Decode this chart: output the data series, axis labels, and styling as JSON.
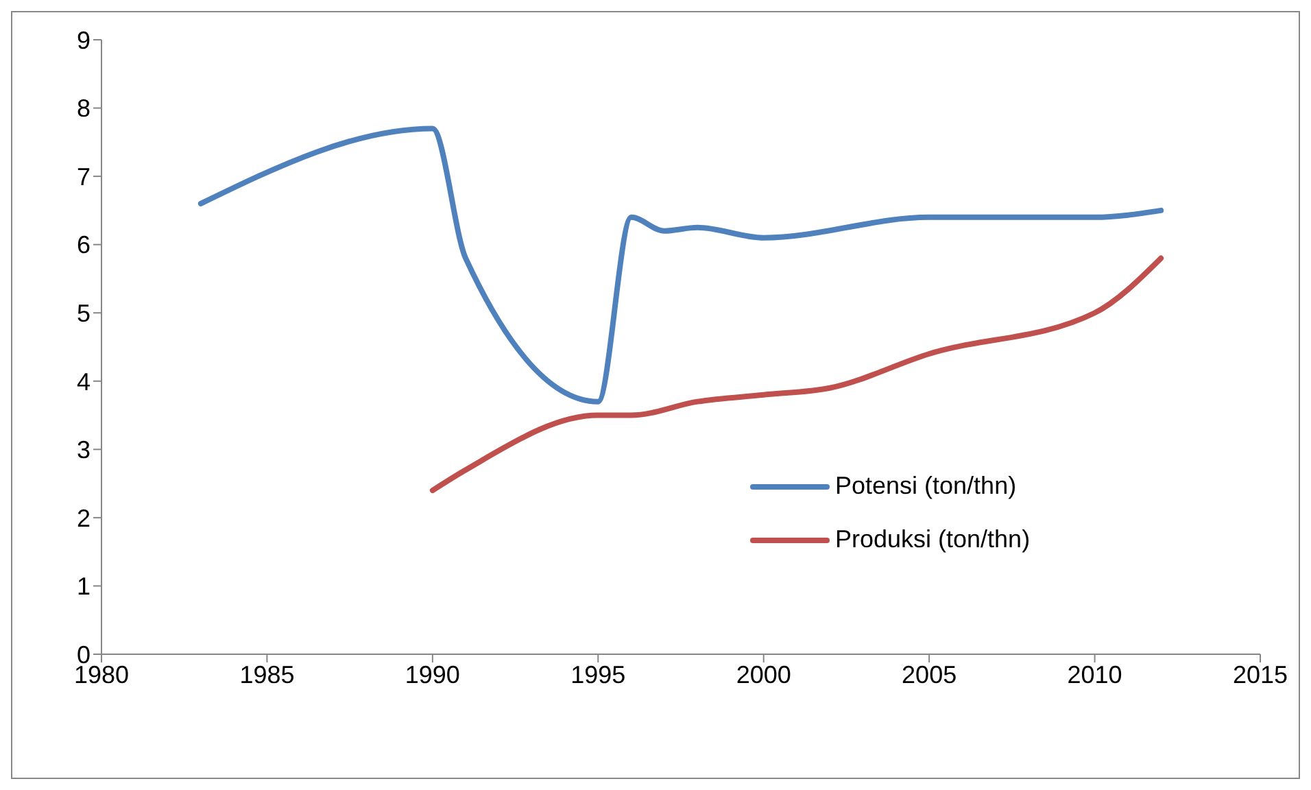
{
  "chart_data": {
    "type": "line",
    "xlim": [
      1980,
      2015
    ],
    "xticks": [
      1980,
      1985,
      1990,
      1995,
      2000,
      2005,
      2010,
      2015
    ],
    "ylim": [
      0,
      9
    ],
    "yticks": [
      0,
      1,
      2,
      3,
      4,
      5,
      6,
      7,
      8,
      9
    ],
    "grid": false,
    "legend": "right",
    "marker": "none",
    "line_style": "solid",
    "series": [
      {
        "name": "Potensi (ton/thn)",
        "color": "#4f81bd",
        "x": [
          1983,
          1990,
          1991,
          1995,
          1996,
          1997,
          1998,
          2000,
          2005,
          2010,
          2012
        ],
        "values": [
          6.6,
          7.7,
          5.8,
          3.7,
          6.4,
          6.2,
          6.25,
          6.1,
          6.4,
          6.4,
          6.5
        ]
      },
      {
        "name": "Produksi (ton/thn)",
        "color": "#c0504d",
        "x": [
          1990,
          1991,
          1995,
          1996,
          1998,
          2000,
          2002,
          2005,
          2010,
          2012
        ],
        "values": [
          2.4,
          2.7,
          3.5,
          3.5,
          3.7,
          3.8,
          3.9,
          4.4,
          5.0,
          5.8
        ]
      }
    ]
  }
}
